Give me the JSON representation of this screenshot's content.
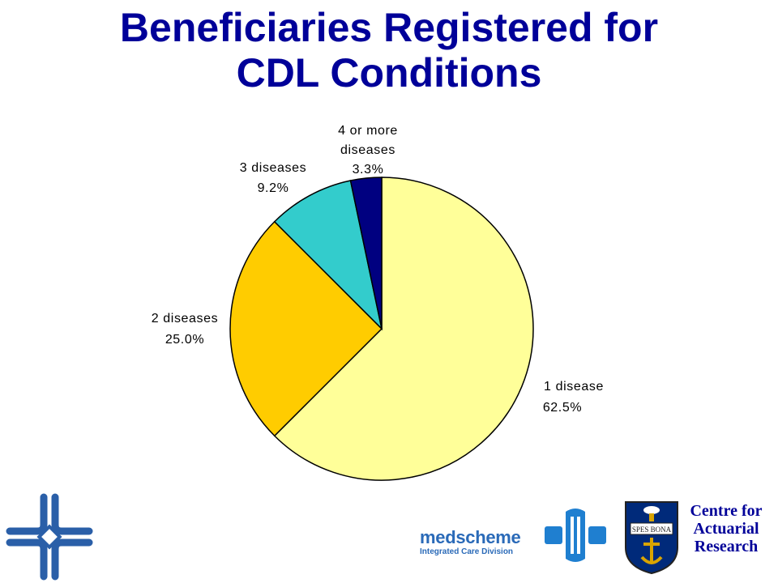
{
  "title_lines": [
    "Beneficiaries Registered for",
    "CDL Conditions"
  ],
  "chart_data": {
    "type": "pie",
    "title": "Beneficiaries Registered for CDL Conditions",
    "slices": [
      {
        "label": "1 disease",
        "value": 62.5,
        "value_label": "62.5%",
        "color": "#FFFF99"
      },
      {
        "label": "2 diseases",
        "value": 25.0,
        "value_label": "25.0%",
        "color": "#FFCC00"
      },
      {
        "label": "3 diseases",
        "value": 9.2,
        "value_label": "9.2%",
        "color": "#33CCCC"
      },
      {
        "label": "4 or more diseases",
        "label_lines": [
          "4 or more",
          "diseases"
        ],
        "value": 3.3,
        "value_label": "3.3%",
        "color": "#000080"
      }
    ],
    "start_angle": "12 o'clock",
    "direction": "clockwise",
    "legend": "none"
  },
  "logos": {
    "medscheme": {
      "name": "medscheme",
      "subtitle": "Integrated Care Division"
    },
    "crest_motto": "SPES BONA",
    "centre": [
      "Centre for",
      "Actuarial",
      "Research"
    ]
  }
}
